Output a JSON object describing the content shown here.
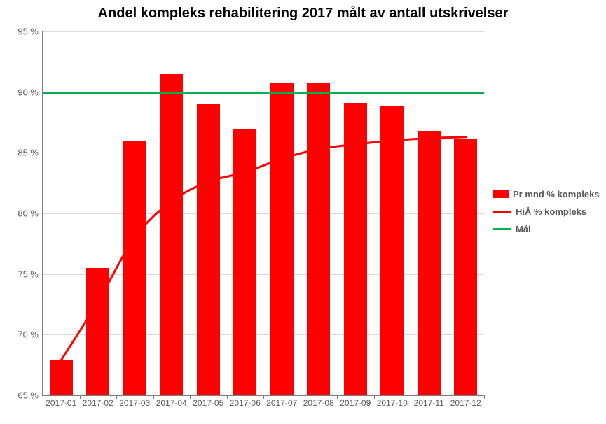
{
  "chart": {
    "type": "bar+line",
    "title": "Andel kompleks rehabilitering 2017 målt av antall utskrivelser",
    "title_fontsize": 20,
    "title_fontweight": "bold",
    "background_color": "#ffffff",
    "grid_color": "#d9d9d9",
    "axis_color": "#7f7f7f",
    "label_color": "#595959",
    "label_fontsize": 13,
    "xlabel_fontsize": 12,
    "ylim": [
      65,
      95
    ],
    "ytick_step": 5,
    "yticks": [
      65,
      70,
      75,
      80,
      85,
      90,
      95
    ],
    "ytick_labels": [
      "65 %",
      "70 %",
      "75 %",
      "80 %",
      "85 %",
      "90 %",
      "95 %"
    ],
    "categories": [
      "2017-01",
      "2017-02",
      "2017-03",
      "2017-04",
      "2017-05",
      "2017-06",
      "2017-07",
      "2017-08",
      "2017-09",
      "2017-10",
      "2017-11",
      "2017-12"
    ],
    "bars": {
      "name": "Pr mnd % kompleks",
      "values": [
        67.9,
        75.5,
        86.0,
        91.5,
        89.0,
        87.0,
        90.8,
        90.8,
        89.1,
        88.8,
        86.8,
        86.1
      ],
      "color": "#ff0000",
      "bar_width_ratio": 0.62
    },
    "line": {
      "name": "HiÅ % kompleks",
      "values": [
        67.9,
        72.7,
        78.0,
        81.0,
        82.6,
        83.4,
        84.5,
        85.3,
        85.7,
        86.0,
        86.2,
        86.3
      ],
      "color": "#ff0000",
      "line_width": 3,
      "smooth": true
    },
    "target": {
      "name": "Mål",
      "value": 90,
      "color": "#00b050",
      "line_width": 2
    },
    "legend": {
      "position": "right",
      "items": [
        {
          "type": "bar",
          "label": "Pr mnd % kompleks",
          "color": "#ff0000"
        },
        {
          "type": "line",
          "label": "HiÅ % kompleks",
          "color": "#ff0000"
        },
        {
          "type": "line",
          "label": "Mål",
          "color": "#00b050"
        }
      ]
    }
  }
}
